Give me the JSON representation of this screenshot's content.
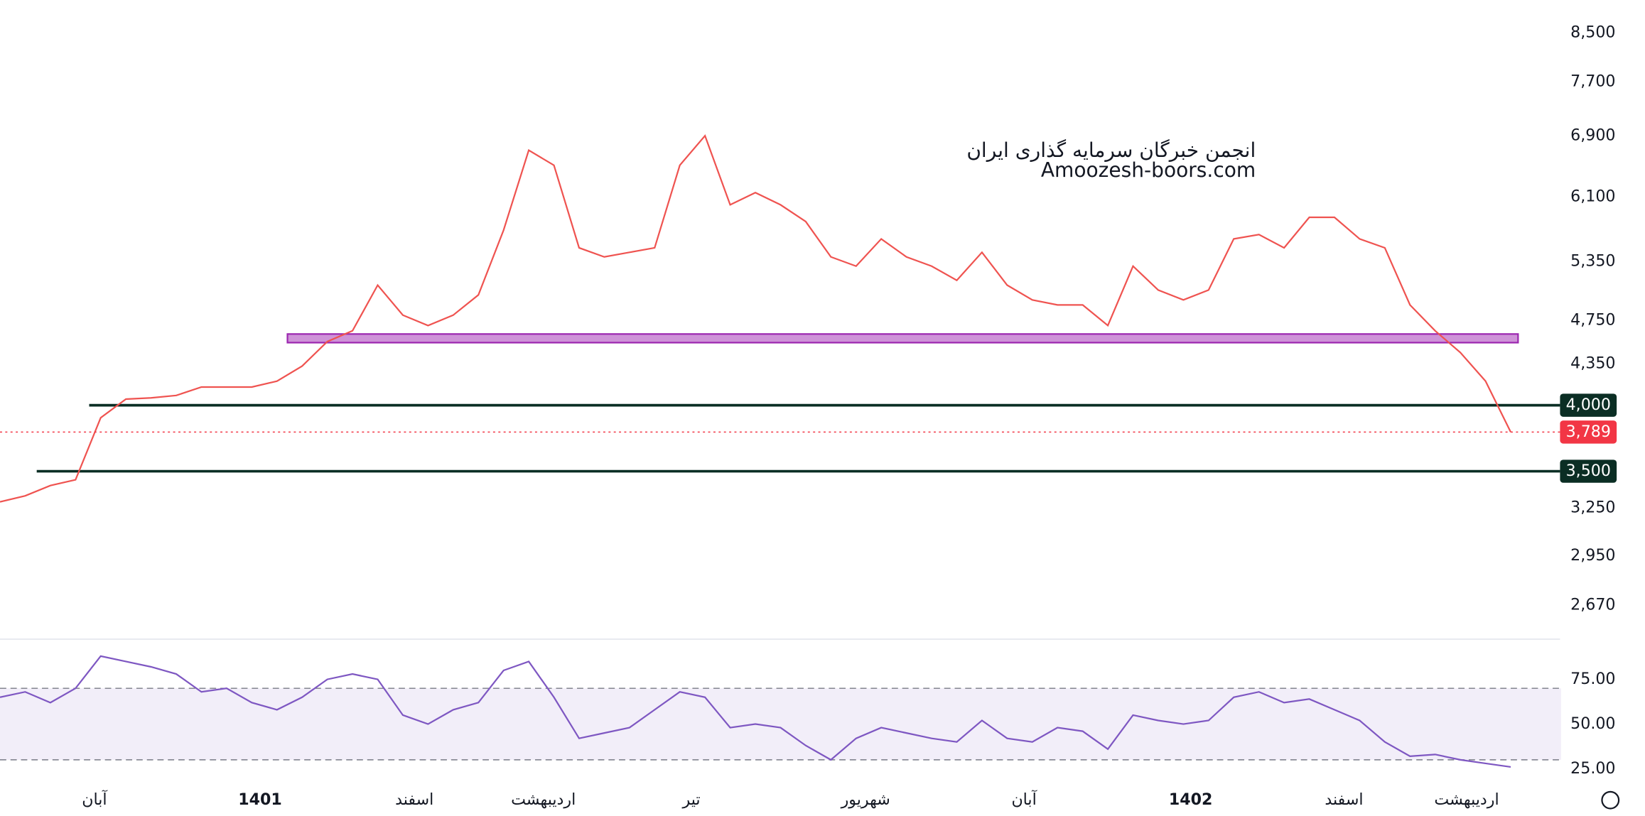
{
  "chart_data": [
    {
      "type": "line",
      "log_scale": true,
      "annotations": [
        "انجمن خبرگان سرمایه گذاری ایران",
        "Amoozesh-boors.com"
      ],
      "xlim": [
        0,
        62
      ],
      "ylim": [
        2505,
        9078
      ],
      "yticks": [
        {
          "value": 8500,
          "label": "8,500"
        },
        {
          "value": 7700,
          "label": "7,700"
        },
        {
          "value": 6900,
          "label": "6,900"
        },
        {
          "value": 6100,
          "label": "6,100"
        },
        {
          "value": 5350,
          "label": "5,350"
        },
        {
          "value": 4750,
          "label": "4,750"
        },
        {
          "value": 4350,
          "label": "4,350"
        },
        {
          "value": 3250,
          "label": "3,250"
        },
        {
          "value": 2950,
          "label": "2,950"
        },
        {
          "value": 2670,
          "label": "2,670"
        }
      ],
      "levels": [
        {
          "value": 4000,
          "label": "4,000",
          "color": "#0b2e24"
        },
        {
          "value": 3500,
          "label": "3,500",
          "color": "#0b2e24"
        }
      ],
      "zone": {
        "range": [
          4540,
          4620
        ],
        "color": "#ce93d8"
      },
      "last_price": {
        "value": 3789,
        "label": "3,789",
        "color": "#f23645"
      },
      "series": [
        {
          "color": "#ef5350",
          "values": [
            3290,
            3330,
            3400,
            3440,
            3900,
            4050,
            4060,
            4080,
            4150,
            4150,
            4150,
            4200,
            4330,
            4550,
            4650,
            5100,
            4800,
            4700,
            4800,
            5000,
            5700,
            6700,
            6500,
            5500,
            5400,
            5450,
            5500,
            6500,
            6900,
            6000,
            6150,
            6000,
            5800,
            5400,
            5300,
            5600,
            5400,
            5300,
            5150,
            5450,
            5100,
            4950,
            4900,
            4900,
            4700,
            5300,
            5050,
            4950,
            5050,
            5600,
            5650,
            5500,
            5850,
            5850,
            5600,
            5500,
            4900,
            4650,
            4450,
            4200,
            3789
          ]
        }
      ]
    },
    {
      "type": "line",
      "xlim": [
        0,
        62
      ],
      "ylim": [
        18,
        96
      ],
      "yticks": [
        {
          "value": 75,
          "label": "75.00"
        },
        {
          "value": 50,
          "label": "50.00"
        },
        {
          "value": 25,
          "label": "25.00"
        }
      ],
      "bands": [
        30,
        70
      ],
      "xticks": [
        {
          "value": 3.75,
          "label": "آبان"
        },
        {
          "value": 10.33,
          "label": "1401"
        },
        {
          "value": 16.46,
          "label": "اسفند"
        },
        {
          "value": 21.58,
          "label": "اردیبهشت"
        },
        {
          "value": 27.46,
          "label": "تیر"
        },
        {
          "value": 34.38,
          "label": "شهریور"
        },
        {
          "value": 40.67,
          "label": "آبان"
        },
        {
          "value": 47.29,
          "label": "1402"
        },
        {
          "value": 53.38,
          "label": "اسفند"
        },
        {
          "value": 58.25,
          "label": "اردیبهشت"
        }
      ],
      "series": [
        {
          "color": "#7e57c2",
          "values": [
            65,
            68,
            62,
            70,
            88,
            85,
            82,
            78,
            68,
            70,
            62,
            58,
            65,
            75,
            78,
            75,
            55,
            50,
            58,
            62,
            80,
            85,
            65,
            42,
            45,
            48,
            58,
            68,
            65,
            48,
            50,
            48,
            38,
            30,
            42,
            48,
            45,
            42,
            40,
            52,
            42,
            40,
            48,
            46,
            36,
            55,
            52,
            50,
            52,
            65,
            68,
            62,
            64,
            58,
            52,
            40,
            32,
            33,
            30,
            28,
            26
          ]
        }
      ]
    }
  ]
}
